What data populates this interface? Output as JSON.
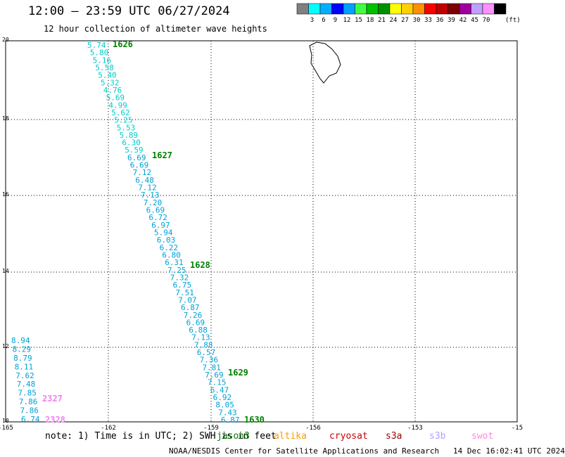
{
  "header": {
    "title": "12:00 — 23:59 UTC 06/27/2024",
    "subtitle": "12 hour collection of altimeter wave heights"
  },
  "colorbar": {
    "colors": [
      "#808080",
      "#00ffff",
      "#00b0ff",
      "#0000ff",
      "#00a0ff",
      "#40ff40",
      "#00c000",
      "#009000",
      "#ffff00",
      "#ffd000",
      "#ff9000",
      "#ff0000",
      "#c00000",
      "#800000",
      "#a000a0",
      "#c0a0ff",
      "#ff90ff",
      "#000000"
    ],
    "labels": [
      "3",
      "6",
      "9",
      "12",
      "15",
      "18",
      "21",
      "24",
      "27",
      "30",
      "33",
      "36",
      "39",
      "42",
      "45",
      "70"
    ],
    "unit": "(ft)"
  },
  "map": {
    "x_ticks": [
      "-165",
      "-162",
      "-159",
      "-156",
      "-153",
      "-15"
    ],
    "y_ticks": [
      "20",
      "18",
      "16",
      "14",
      "12",
      "10"
    ]
  },
  "tracks": [
    {
      "label": "1626",
      "color": "#008000"
    },
    {
      "label": "1627",
      "color": "#008000"
    },
    {
      "label": "1628",
      "color": "#008000"
    },
    {
      "label": "1629",
      "color": "#008000"
    },
    {
      "label": "1630",
      "color": "#008000"
    },
    {
      "label": "2327",
      "color": "#ee82ee"
    },
    {
      "label": "2328",
      "color": "#ee82ee"
    }
  ],
  "main_track_values": [
    "5.74",
    "5.80",
    "5.16",
    "5.58",
    "5.40",
    "5.32",
    "4.76",
    "5.69",
    "4.99",
    "5.62",
    "5.25",
    "5.53",
    "5.89",
    "6.30",
    "5.59",
    "6.69",
    "6.69",
    "7.12",
    "6.48",
    "7.12",
    "7.13",
    "7.20",
    "6.69",
    "6.72",
    "6.97",
    "5.94",
    "6.03",
    "6.22",
    "6.80",
    "6.31",
    "7.25",
    "7.32",
    "6.75",
    "7.51",
    "7.07",
    "6.87",
    "7.26",
    "6.69",
    "6.88",
    "7.13",
    "7.88",
    "6.57",
    "7.36",
    "7.81",
    "7.69",
    "7.15",
    "6.47",
    "6.92",
    "8.05",
    "7.43",
    "6.87"
  ],
  "left_track_values": [
    "8.94",
    "8.29",
    "8.79",
    "8.11",
    "7.62",
    "7.48",
    "7.85",
    "7.86",
    "7.86",
    "6.74"
  ],
  "note": "note: 1) Time is in UTC; 2) SWH is in feet",
  "satellites": [
    {
      "name": "jason3",
      "color": "#008000"
    },
    {
      "name": "altika",
      "color": "#ff9900"
    },
    {
      "name": "cryosat",
      "color": "#cc0000"
    },
    {
      "name": "s3a",
      "color": "#990000"
    },
    {
      "name": "s3b",
      "color": "#b0a0ff"
    },
    {
      "name": "swot",
      "color": "#ff88dd"
    }
  ],
  "footer": "NOAA/NESDIS Center for Satellite Applications and Research   14 Dec 16:02:41 UTC 2024"
}
